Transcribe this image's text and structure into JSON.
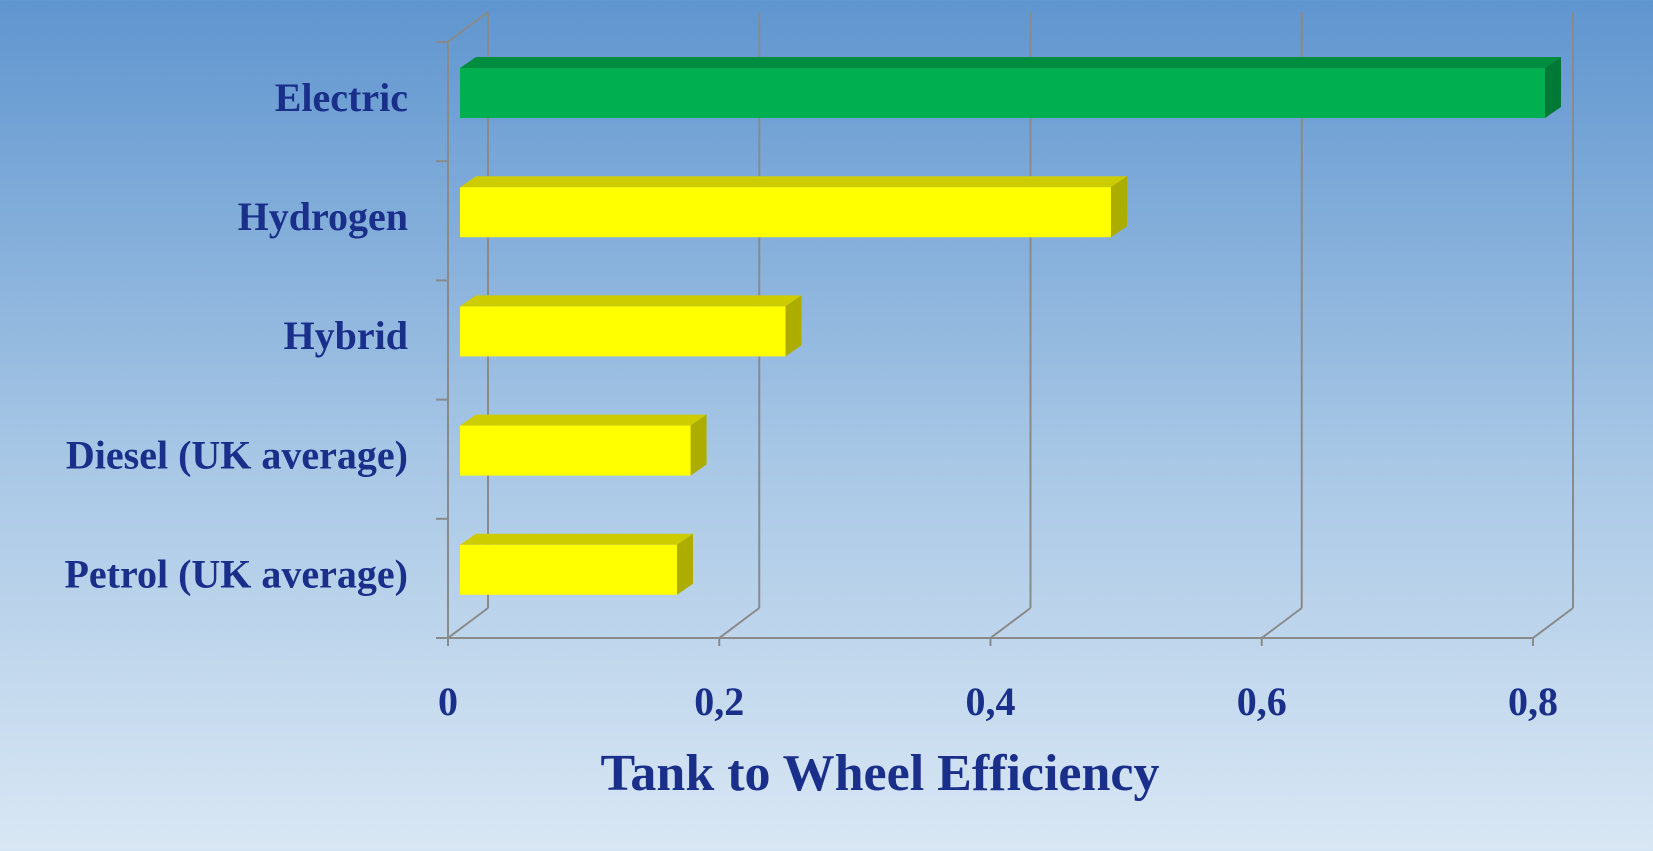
{
  "chart_data": {
    "type": "bar",
    "orientation": "horizontal",
    "x_label": "Tank to Wheel Efficiency",
    "categories": [
      "Electric",
      "Hydrogen",
      "Hybrid",
      "Diesel (UK average)",
      "Petrol (UK average)"
    ],
    "values": [
      0.8,
      0.48,
      0.24,
      0.17,
      0.16
    ],
    "colors": [
      "#00b050",
      "#ffff00",
      "#ffff00",
      "#ffff00",
      "#ffff00"
    ],
    "xlim": [
      0,
      0.8
    ],
    "xticks": [
      0,
      {
        "value": 0.2,
        "label": "0,2"
      },
      {
        "value": 0.4,
        "label": "0,4"
      },
      {
        "value": 0.6,
        "label": "0,6"
      },
      {
        "value": 0.8,
        "label": "0,8"
      }
    ],
    "grid": true
  }
}
